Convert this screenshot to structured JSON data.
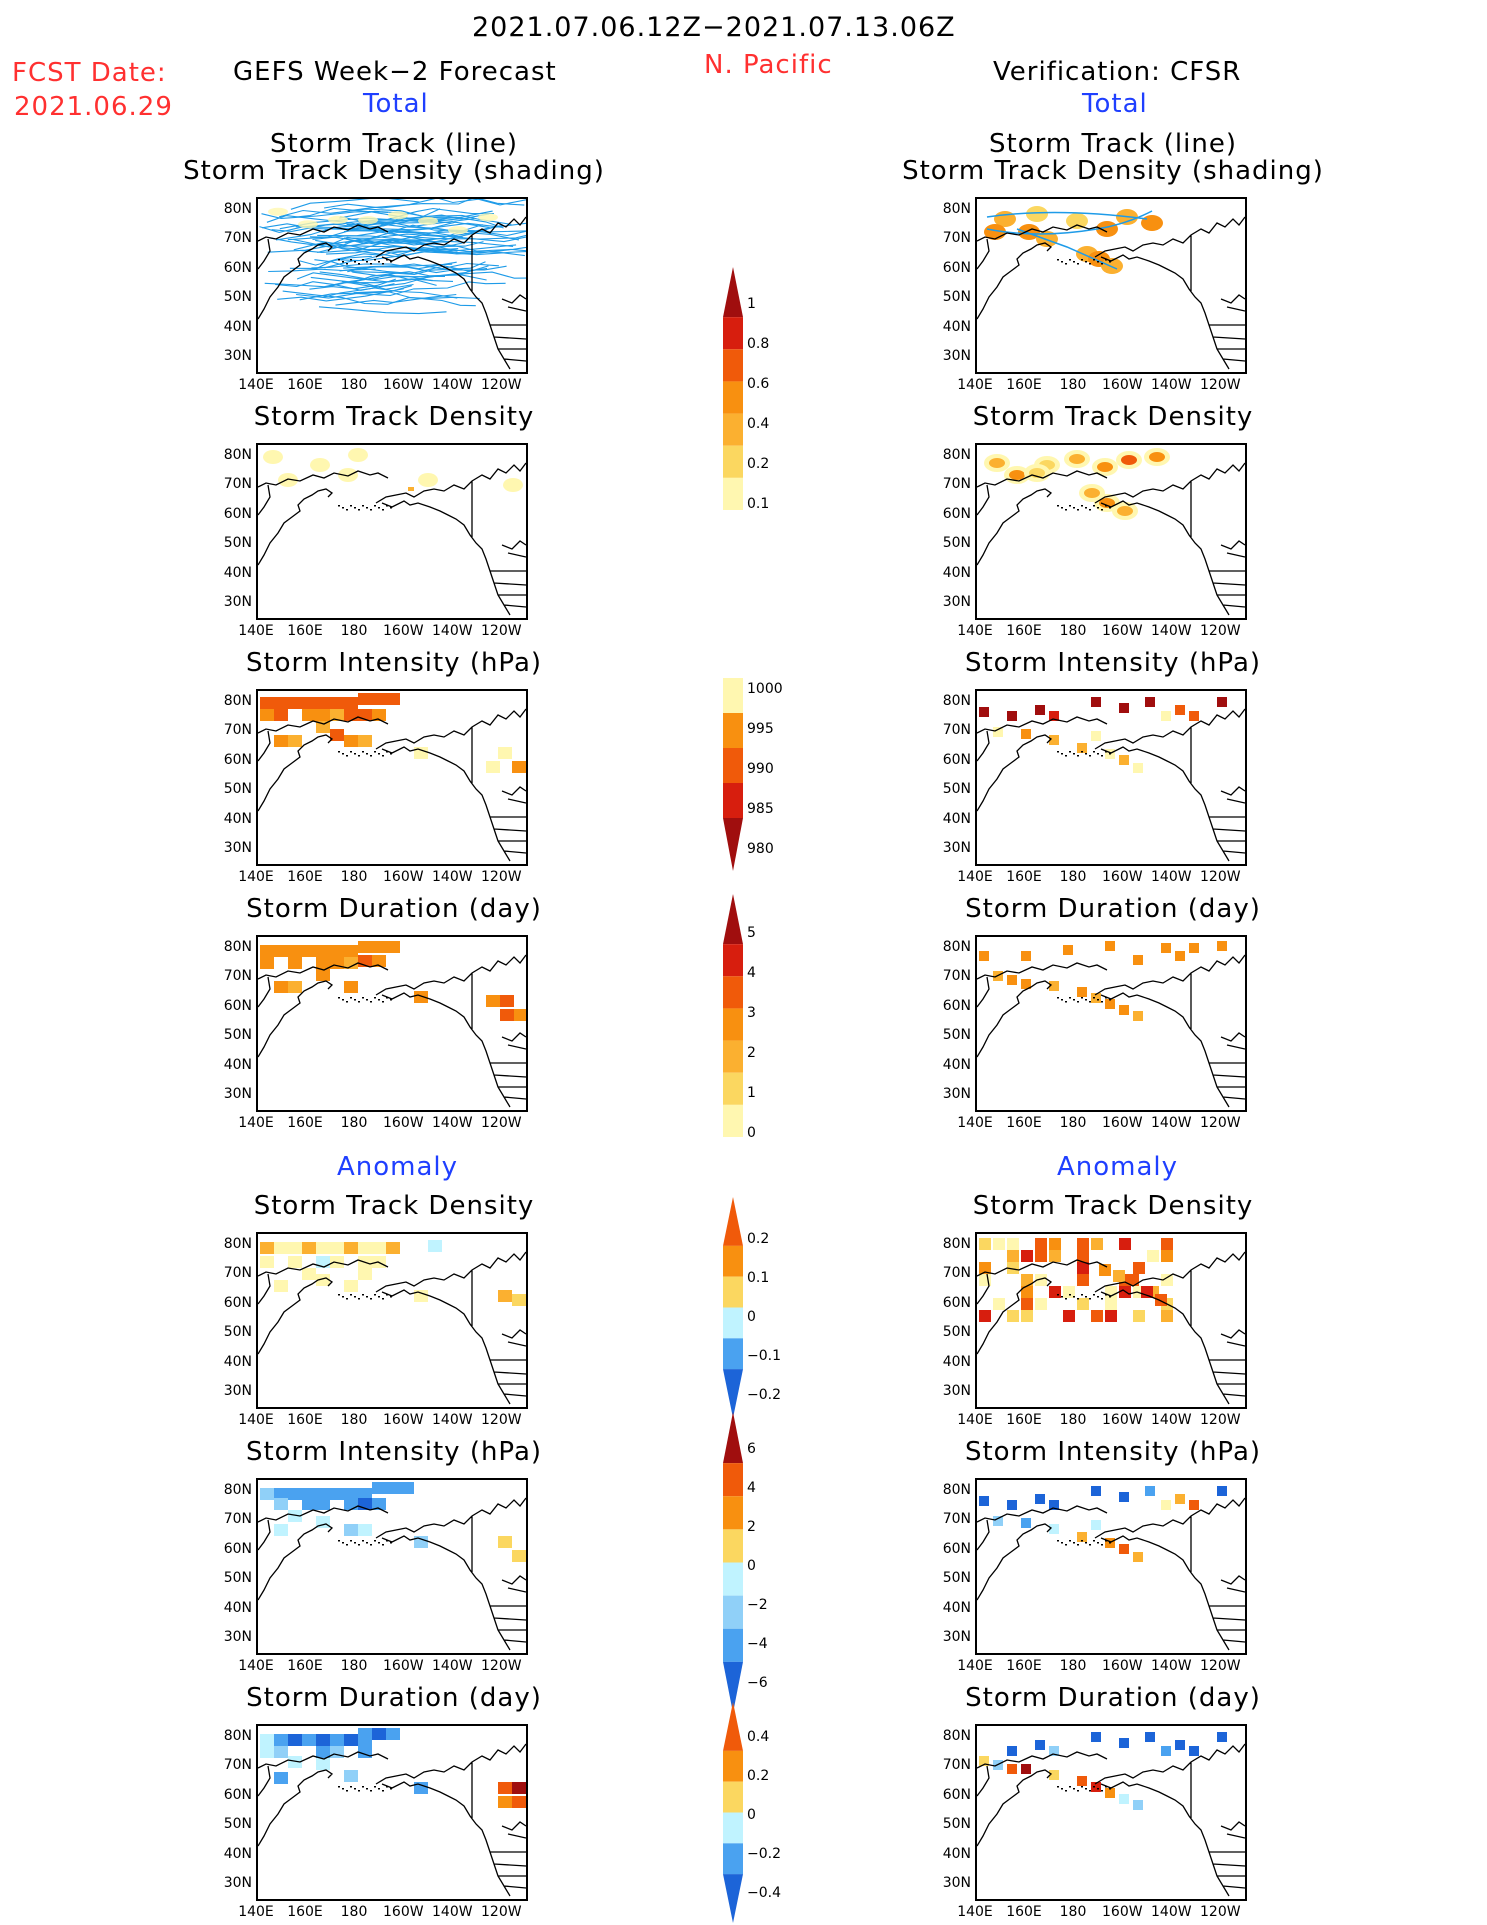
{
  "header": {
    "period": "2021.07.06.12Z−2021.07.13.06Z",
    "fcst_label": "FCST Date:",
    "fcst_date": "2021.06.29",
    "region": "N. Pacific",
    "left_title": "GEFS Week−2 Forecast",
    "right_title": "Verification: CFSR",
    "total_label": "Total",
    "anomaly_label": "Anomaly"
  },
  "panel_titles": {
    "track_line": "Storm Track (line)",
    "track_shading": "Storm Track Density (shading)",
    "density": "Storm Track Density",
    "intensity": "Storm Intensity (hPa)",
    "duration": "Storm Duration (day)"
  },
  "axes": {
    "lat_labels": [
      "80N",
      "70N",
      "60N",
      "50N",
      "40N",
      "30N"
    ],
    "lon_labels": [
      "140E",
      "160E",
      "180",
      "160W",
      "140W",
      "120W"
    ]
  },
  "colorbars": {
    "density_total": [
      "1",
      "0.8",
      "0.6",
      "0.4",
      "0.2",
      "0.1"
    ],
    "intensity_total": [
      "1000",
      "995",
      "990",
      "985",
      "980"
    ],
    "duration_total": [
      "5",
      "4",
      "3",
      "2",
      "1",
      "0"
    ],
    "density_anom": [
      "0.2",
      "0.1",
      "0",
      "−0.1",
      "−0.2"
    ],
    "intensity_anom": [
      "6",
      "4",
      "2",
      "0",
      "−2",
      "−4",
      "−6"
    ],
    "duration_anom": [
      "0.4",
      "0.2",
      "0",
      "−0.2",
      "−0.4"
    ]
  },
  "colors": {
    "title_red": "#ff3030",
    "title_blue": "#1f3fff",
    "track_blue": "#1e9be8",
    "yellow_light": "#fff7b0",
    "yellow": "#fbd760",
    "orange_light": "#fbb030",
    "orange": "#f89010",
    "orange_red": "#f05a0a",
    "red": "#d71e0e",
    "dark_red": "#a00e0e",
    "cyan_light": "#c0f3ff",
    "blue_light": "#90d0f8",
    "blue": "#4aa2f0",
    "blue_dark": "#1c64d8"
  },
  "chart_data": [
    {
      "type": "heatmap",
      "title": "Storm Track (line) / Storm Track Density (shading)",
      "source": "GEFS Week-2 Forecast",
      "section": "Total"
    },
    {
      "type": "heatmap",
      "title": "Storm Track (line) / Storm Track Density (shading)",
      "source": "Verification: CFSR",
      "section": "Total"
    },
    {
      "type": "heatmap",
      "title": "Storm Track Density",
      "source": "GEFS Week-2 Forecast",
      "section": "Total",
      "colorbar": [
        0.1,
        0.2,
        0.4,
        0.6,
        0.8,
        1
      ]
    },
    {
      "type": "heatmap",
      "title": "Storm Track Density",
      "source": "Verification: CFSR",
      "section": "Total",
      "colorbar": [
        0.1,
        0.2,
        0.4,
        0.6,
        0.8,
        1
      ]
    },
    {
      "type": "heatmap",
      "title": "Storm Intensity (hPa)",
      "source": "GEFS Week-2 Forecast",
      "section": "Total",
      "colorbar": [
        980,
        985,
        990,
        995,
        1000
      ]
    },
    {
      "type": "heatmap",
      "title": "Storm Intensity (hPa)",
      "source": "Verification: CFSR",
      "section": "Total",
      "colorbar": [
        980,
        985,
        990,
        995,
        1000
      ]
    },
    {
      "type": "heatmap",
      "title": "Storm Duration (day)",
      "source": "GEFS Week-2 Forecast",
      "section": "Total",
      "colorbar": [
        0,
        1,
        2,
        3,
        4,
        5
      ]
    },
    {
      "type": "heatmap",
      "title": "Storm Duration (day)",
      "source": "Verification: CFSR",
      "section": "Total",
      "colorbar": [
        0,
        1,
        2,
        3,
        4,
        5
      ]
    },
    {
      "type": "heatmap",
      "title": "Storm Track Density",
      "source": "GEFS Week-2 Forecast",
      "section": "Anomaly",
      "colorbar": [
        -0.2,
        -0.1,
        0,
        0.1,
        0.2
      ]
    },
    {
      "type": "heatmap",
      "title": "Storm Track Density",
      "source": "Verification: CFSR",
      "section": "Anomaly",
      "colorbar": [
        -0.2,
        -0.1,
        0,
        0.1,
        0.2
      ]
    },
    {
      "type": "heatmap",
      "title": "Storm Intensity (hPa)",
      "source": "GEFS Week-2 Forecast",
      "section": "Anomaly",
      "colorbar": [
        -6,
        -4,
        -2,
        0,
        2,
        4,
        6
      ]
    },
    {
      "type": "heatmap",
      "title": "Storm Intensity (hPa)",
      "source": "Verification: CFSR",
      "section": "Anomaly",
      "colorbar": [
        -6,
        -4,
        -2,
        0,
        2,
        4,
        6
      ]
    },
    {
      "type": "heatmap",
      "title": "Storm Duration (day)",
      "source": "GEFS Week-2 Forecast",
      "section": "Anomaly",
      "colorbar": [
        -0.4,
        -0.2,
        0,
        0.2,
        0.4
      ]
    },
    {
      "type": "heatmap",
      "title": "Storm Duration (day)",
      "source": "Verification: CFSR",
      "section": "Anomaly",
      "colorbar": [
        -0.4,
        -0.2,
        0,
        0.2,
        0.4
      ]
    }
  ]
}
